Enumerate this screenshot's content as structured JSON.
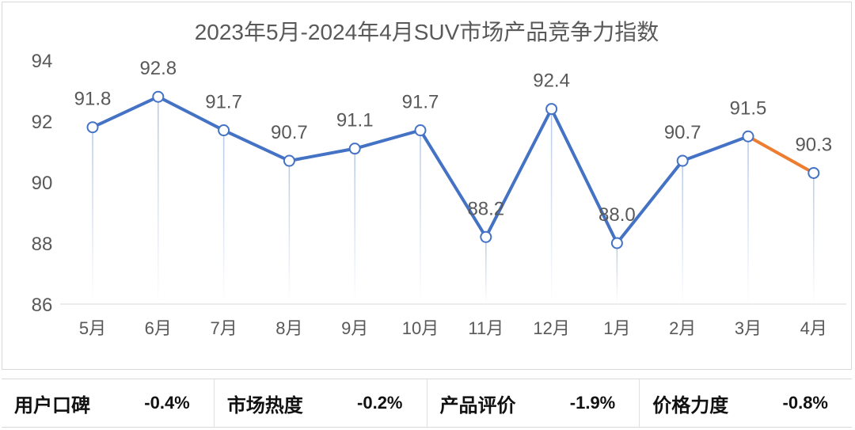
{
  "chart_data": {
    "type": "line",
    "title": "2023年5月-2024年4月SUV市场产品竞争力指数",
    "categories": [
      "5月",
      "6月",
      "7月",
      "8月",
      "9月",
      "10月",
      "11月",
      "12月",
      "1月",
      "2月",
      "3月",
      "4月"
    ],
    "values": [
      91.8,
      92.8,
      91.7,
      90.7,
      91.1,
      91.7,
      88.2,
      92.4,
      88.0,
      90.7,
      91.5,
      90.3
    ],
    "data_labels": [
      "91.8",
      "92.8",
      "91.7",
      "90.7",
      "91.1",
      "91.7",
      "88.2",
      "92.4",
      "88.0",
      "90.7",
      "91.5",
      "90.3"
    ],
    "ylim": [
      86,
      94
    ],
    "yticks": [
      "86",
      "88",
      "90",
      "92",
      "94"
    ],
    "grid": false,
    "colors": {
      "line": "#4472c4",
      "last_segment": "#ed7d31",
      "drop_line": "#b4c7e7",
      "text": "#595959"
    }
  },
  "metrics": [
    {
      "label": "用户口碑",
      "value": "-0.4%"
    },
    {
      "label": "市场热度",
      "value": "-0.2%"
    },
    {
      "label": "产品评价",
      "value": "-1.9%"
    },
    {
      "label": "价格力度",
      "value": "-0.8%"
    }
  ]
}
